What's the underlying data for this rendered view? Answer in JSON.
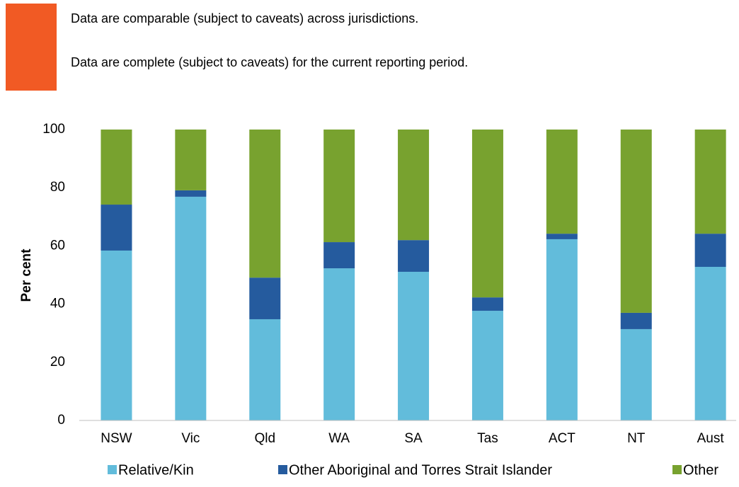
{
  "notes": [
    "Data are comparable (subject to caveats) across jurisdictions.",
    "Data are complete (subject to caveats) for the current reporting period."
  ],
  "chart_data": {
    "type": "stacked_bar",
    "y_label": "Per cent",
    "categories": [
      "NSW",
      "Vic",
      "Qld",
      "WA",
      "SA",
      "Tas",
      "ACT",
      "NT",
      "Aust"
    ],
    "series": [
      {
        "name": "Relative/Kin",
        "color": "#62bcdb",
        "values": [
          58.4,
          76.9,
          34.8,
          52.3,
          51.1,
          37.7,
          62.3,
          31.4,
          52.8
        ]
      },
      {
        "name": "Other Aboriginal and Torres Strait Islander",
        "color": "#255b9e",
        "values": [
          15.8,
          2.2,
          14.3,
          9.0,
          10.9,
          4.6,
          1.9,
          5.6,
          11.4
        ]
      },
      {
        "name": "Other",
        "color": "#78a22f",
        "values": [
          25.8,
          20.9,
          50.9,
          38.7,
          38.0,
          57.7,
          35.8,
          63.0,
          35.8
        ]
      }
    ],
    "ylim": [
      0,
      100
    ],
    "yticks": [
      0,
      20,
      40,
      60,
      80,
      100
    ],
    "grid": false,
    "legend": "bottom"
  }
}
